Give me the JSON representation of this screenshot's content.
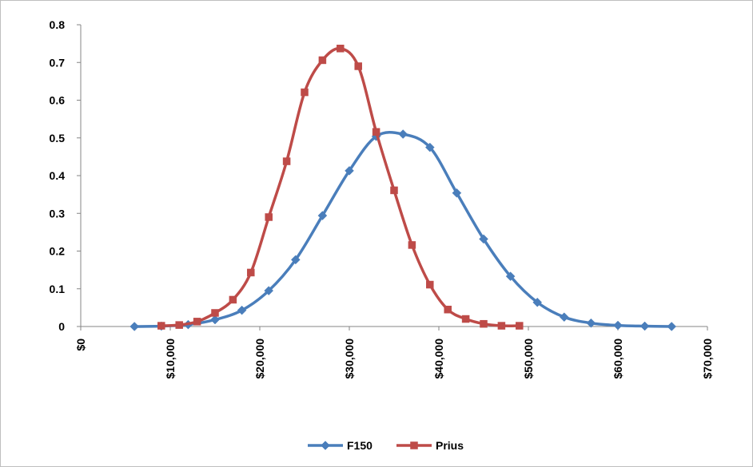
{
  "chart_data": {
    "type": "line",
    "xlim": [
      0,
      70000
    ],
    "ylim": [
      0,
      0.8
    ],
    "x_ticks": [
      0,
      10000,
      20000,
      30000,
      40000,
      50000,
      60000,
      70000
    ],
    "x_tick_labels": [
      "$0",
      "$10,000",
      "$20,000",
      "$30,000",
      "$40,000",
      "$50,000",
      "$60,000",
      "$70,000"
    ],
    "y_ticks": [
      0,
      0.1,
      0.2,
      0.3,
      0.4,
      0.5,
      0.6,
      0.7,
      0.8
    ],
    "y_tick_labels": [
      "0",
      "0.1",
      "0.2",
      "0.3",
      "0.4",
      "0.5",
      "0.6",
      "0.7",
      "0.8"
    ],
    "grid": false,
    "legend_position": "bottom",
    "series": [
      {
        "name": "F150",
        "color": "#4a7ebb",
        "marker": "diamond",
        "x": [
          6000,
          9000,
          12000,
          15000,
          18000,
          21000,
          24000,
          27000,
          30000,
          33000,
          36000,
          39000,
          42000,
          45000,
          48000,
          51000,
          54000,
          57000,
          60000,
          63000,
          66000
        ],
        "y": [
          0,
          0.001,
          0.005,
          0.018,
          0.043,
          0.095,
          0.177,
          0.294,
          0.413,
          0.504,
          0.51,
          0.475,
          0.354,
          0.232,
          0.133,
          0.064,
          0.025,
          0.009,
          0.003,
          0.001,
          0
        ]
      },
      {
        "name": "Prius",
        "color": "#be4b48",
        "marker": "square",
        "x": [
          9000,
          11000,
          13000,
          15000,
          17000,
          19000,
          21000,
          23000,
          25000,
          27000,
          29000,
          31000,
          33000,
          35000,
          37000,
          39000,
          41000,
          43000,
          45000,
          47000,
          49000
        ],
        "y": [
          0.002,
          0.004,
          0.013,
          0.036,
          0.071,
          0.143,
          0.29,
          0.438,
          0.621,
          0.706,
          0.737,
          0.69,
          0.516,
          0.361,
          0.216,
          0.111,
          0.045,
          0.02,
          0.007,
          0.002,
          0.002
        ]
      }
    ]
  }
}
